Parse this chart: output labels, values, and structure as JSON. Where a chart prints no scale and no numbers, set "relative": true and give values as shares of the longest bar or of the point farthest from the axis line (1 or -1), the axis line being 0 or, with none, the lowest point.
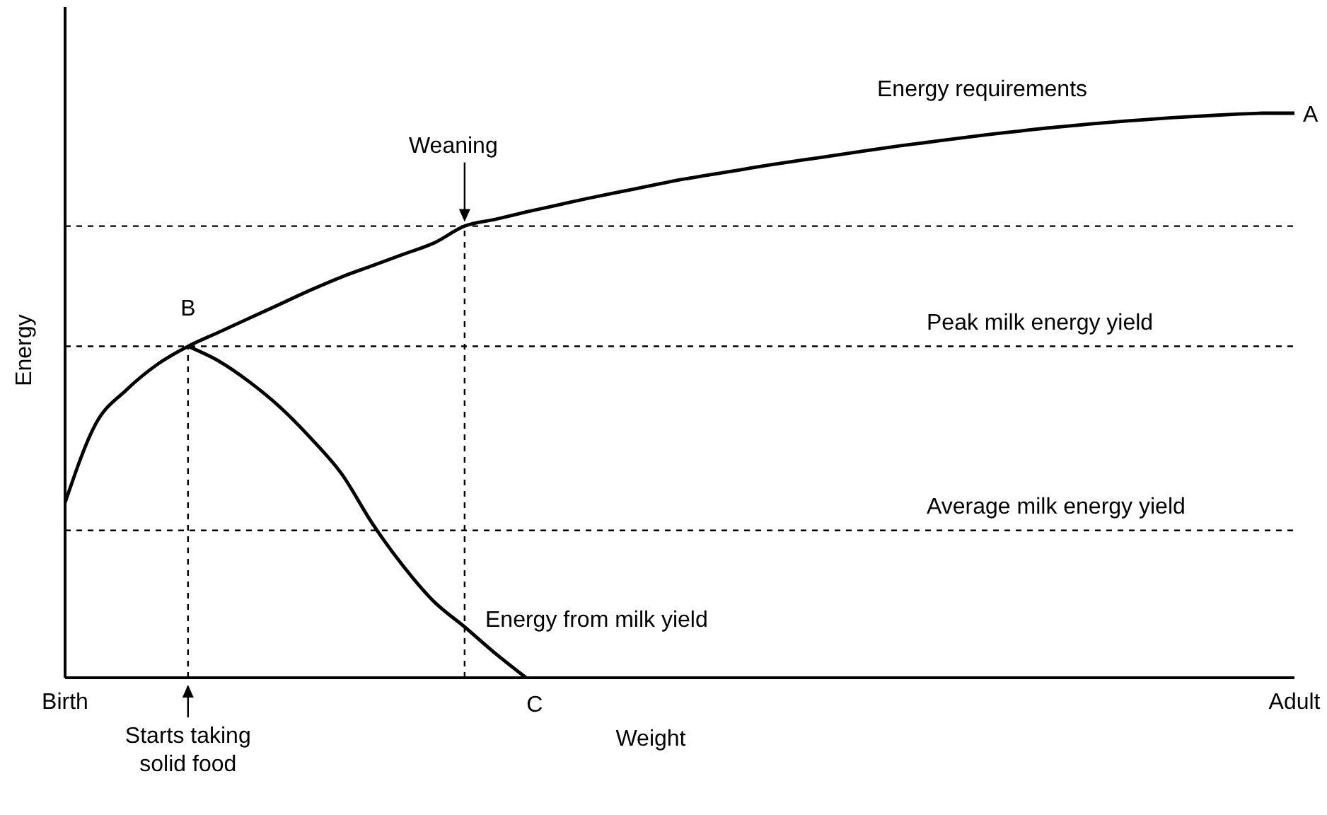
{
  "chart_data": {
    "type": "line",
    "relative": true,
    "xlabel": "Weight",
    "ylabel": "Energy",
    "categories": [
      "Birth",
      null,
      null,
      null,
      null,
      null,
      null,
      null,
      null,
      null,
      null,
      null,
      null,
      null,
      null,
      null,
      null,
      null,
      null,
      null,
      null,
      null,
      null,
      null,
      null,
      null,
      null,
      null,
      null,
      null,
      null,
      null,
      null,
      null,
      null,
      null,
      null,
      null,
      null,
      null,
      "Adult"
    ],
    "series": [
      {
        "name": "Energy requirements",
        "color": "#000000",
        "values": [
          0.31,
          0.45,
          0.51,
          0.555,
          0.587,
          0.612,
          0.637,
          0.662,
          0.687,
          0.71,
          0.73,
          0.75,
          0.77,
          0.8,
          0.812,
          0.825,
          0.837,
          0.849,
          0.86,
          0.871,
          0.882,
          0.891,
          0.9,
          0.909,
          0.917,
          0.925,
          0.933,
          0.941,
          0.948,
          0.955,
          0.962,
          0.968,
          0.974,
          0.979,
          0.984,
          0.988,
          0.992,
          0.995,
          0.998,
          1.0,
          1.0
        ]
      },
      {
        "name": "Energy from milk yield",
        "color": "#000000",
        "values": [
          null,
          null,
          null,
          null,
          0.587,
          0.561,
          0.524,
          0.479,
          0.424,
          0.361,
          0.273,
          0.198,
          0.135,
          0.09,
          0.043,
          0,
          null,
          null,
          null,
          null,
          null,
          null,
          null,
          null,
          null,
          null,
          null,
          null,
          null,
          null,
          null,
          null,
          null,
          null,
          null,
          null,
          null,
          null,
          null,
          null,
          null
        ]
      }
    ],
    "ref_lines": [
      {
        "axis": "y",
        "value": 0.8,
        "line_style": "dashed"
      },
      {
        "axis": "y",
        "value": 0.587,
        "label": "Peak milk energy yield",
        "line_style": "dashed"
      },
      {
        "axis": "y",
        "value": 0.261,
        "label": "Average milk energy yield",
        "line_style": "dashed"
      }
    ],
    "annotations": [
      "A",
      "B",
      "C",
      "Weaning",
      "Starts taking solid food"
    ],
    "line_style": "solid",
    "marker": "none"
  }
}
